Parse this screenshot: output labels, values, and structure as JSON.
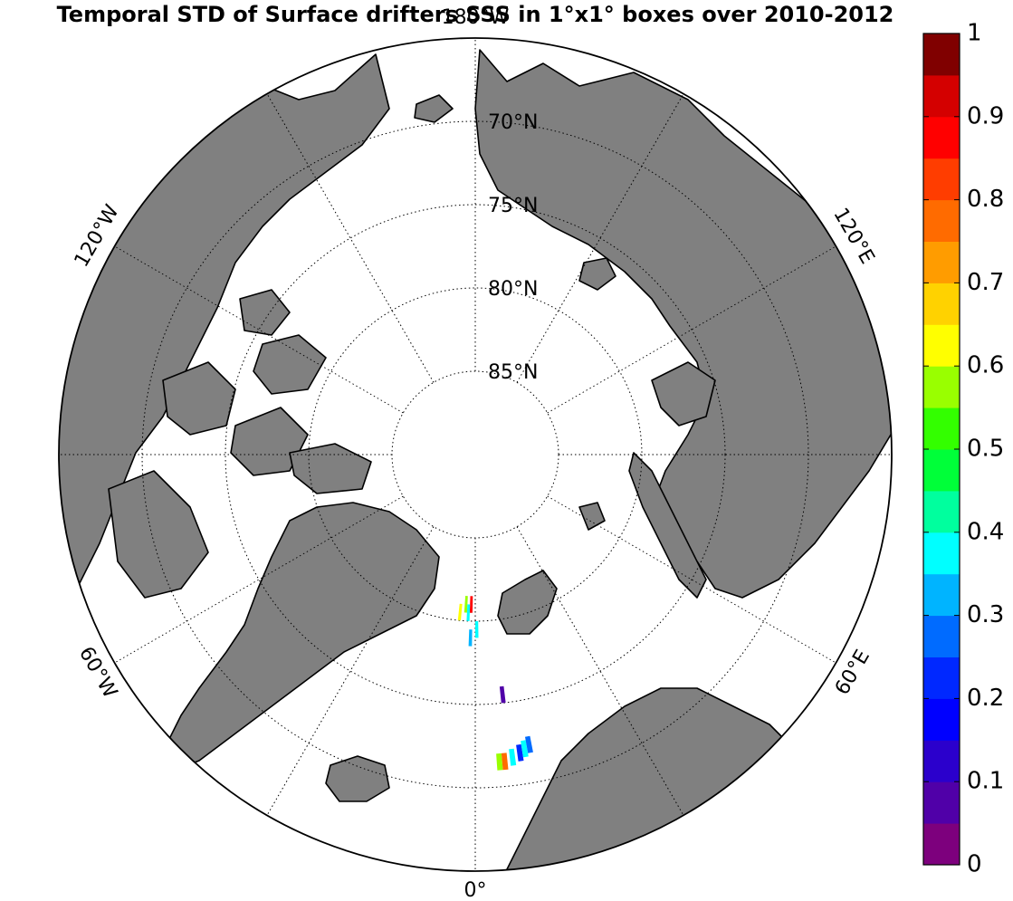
{
  "title": "Temporal STD of Surface drifters SSS in 1°x1° boxes over 2010-2012",
  "map": {
    "projection": "north-polar-stereographic",
    "lat_labels": [
      {
        "lat": 70,
        "text": "70°N"
      },
      {
        "lat": 75,
        "text": "75°N"
      },
      {
        "lat": 80,
        "text": "80°N"
      },
      {
        "lat": 85,
        "text": "85°N"
      }
    ],
    "lon_labels": [
      {
        "lon": 180,
        "text": "180°W"
      },
      {
        "lon": 120,
        "text": "120°E"
      },
      {
        "lon": 60,
        "text": "60°E"
      },
      {
        "lon": 0,
        "text": "0°"
      },
      {
        "lon": -60,
        "text": "60°W"
      },
      {
        "lon": -120,
        "text": "120°W"
      }
    ],
    "land_color": "#808080",
    "ocean_color": "#ffffff"
  },
  "colorbar": {
    "min": 0,
    "max": 1,
    "tick_labels": [
      "0",
      "0.1",
      "0.2",
      "0.3",
      "0.4",
      "0.5",
      "0.6",
      "0.7",
      "0.8",
      "0.9",
      "1"
    ],
    "colors": [
      "#7d007d",
      "#5000a8",
      "#2b00cc",
      "#0000ff",
      "#0028ff",
      "#006bff",
      "#00b4ff",
      "#00ffff",
      "#00ff9e",
      "#00ff39",
      "#33ff00",
      "#99ff00",
      "#ffff00",
      "#ffd200",
      "#ff9c00",
      "#ff6b00",
      "#ff3d00",
      "#ff0000",
      "#d40000",
      "#800000"
    ]
  },
  "chart_data": {
    "type": "heatmap",
    "title": "Temporal STD of Surface drifters SSS in 1°x1° boxes over 2010-2012",
    "variable": "STD of SSS",
    "vmin": 0,
    "vmax": 1,
    "cells": [
      {
        "lat": 80.5,
        "lon": -4,
        "value": 0.55
      },
      {
        "lat": 80.5,
        "lon": -2,
        "value": 0.85
      },
      {
        "lat": 80.0,
        "lon": -6,
        "value": 0.62
      },
      {
        "lat": 80.0,
        "lon": -3,
        "value": 0.35
      },
      {
        "lat": 79.0,
        "lon": 0,
        "value": 0.38
      },
      {
        "lat": 78.5,
        "lon": -2,
        "value": 0.3
      },
      {
        "lat": 75.0,
        "lon": 6,
        "value": 0.05
      },
      {
        "lat": 71.0,
        "lon": 4,
        "value": 0.55
      },
      {
        "lat": 71.0,
        "lon": 5,
        "value": 0.75
      },
      {
        "lat": 71.2,
        "lon": 6.5,
        "value": 0.35
      },
      {
        "lat": 71.4,
        "lon": 8,
        "value": 0.2
      },
      {
        "lat": 71.6,
        "lon": 9,
        "value": 0.35
      },
      {
        "lat": 71.8,
        "lon": 10,
        "value": 0.25
      }
    ]
  }
}
